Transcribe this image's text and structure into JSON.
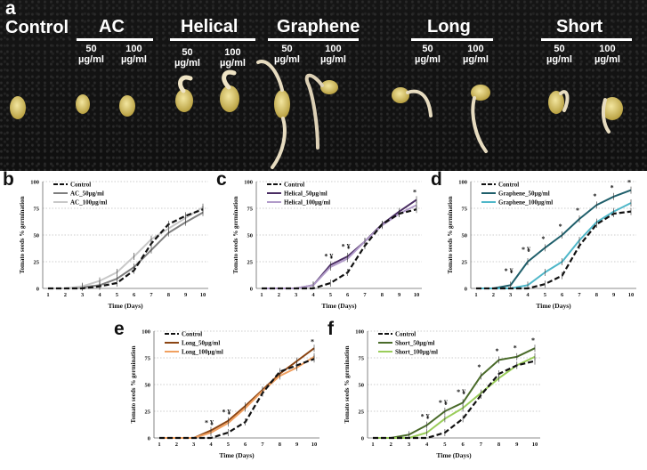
{
  "figure": {
    "panel_a": {
      "letter": "a",
      "labels": {
        "control": "Control",
        "ac": "AC",
        "helical": "Helical",
        "graphene": "Graphene",
        "long": "Long",
        "short": "Short"
      },
      "doses": {
        "ac_50": "50\nµg/ml",
        "ac_100": "100\nµg/ml",
        "helical_50": "50\nµg/ml",
        "helical_100": "100\nµg/ml",
        "graphene_50": "50\nµg/ml",
        "graphene_100": "100\nµg/ml",
        "long_50": "50\nµg/ml",
        "long_100": "100\nµg/ml",
        "short_50": "50\nµg/ml",
        "short_100": "100\nµg/ml"
      }
    }
  },
  "chart_data": [
    {
      "letter": "b",
      "type": "line",
      "xlabel": "Time (Days)",
      "ylabel": "Tomato seeds % germination",
      "x": [
        1,
        2,
        3,
        4,
        5,
        6,
        7,
        8,
        9,
        10
      ],
      "ylim": [
        0,
        100
      ],
      "yticks": [
        0,
        25,
        50,
        75,
        100
      ],
      "grid": "dotted horizontal",
      "legend": "top-left",
      "series": [
        {
          "name": "Control",
          "color": "#111111",
          "dash": true,
          "values": [
            0,
            0,
            0,
            2,
            5,
            17,
            42,
            60,
            68,
            74
          ]
        },
        {
          "name": "AC_50µg/ml",
          "color": "#7f7f7f",
          "dash": false,
          "values": [
            0,
            0,
            1,
            3,
            9,
            20,
            36,
            52,
            62,
            71
          ]
        },
        {
          "name": "AC_100µg/ml",
          "color": "#c8c8c8",
          "dash": false,
          "values": [
            0,
            0,
            2,
            7,
            15,
            30,
            46,
            56,
            66,
            76
          ]
        }
      ],
      "annotations": []
    },
    {
      "letter": "c",
      "type": "line",
      "xlabel": "Time (Days)",
      "ylabel": "Tomato seeds % germination",
      "x": [
        1,
        2,
        3,
        4,
        5,
        6,
        7,
        8,
        9,
        10
      ],
      "ylim": [
        0,
        100
      ],
      "yticks": [
        0,
        25,
        50,
        75,
        100
      ],
      "grid": "dotted horizontal",
      "legend": "top-left",
      "series": [
        {
          "name": "Control",
          "color": "#111111",
          "dash": true,
          "values": [
            0,
            0,
            0,
            0,
            5,
            15,
            40,
            60,
            70,
            74
          ]
        },
        {
          "name": "Helical_50µg/ml",
          "color": "#4a2d63",
          "dash": false,
          "values": [
            0,
            0,
            0,
            3,
            22,
            30,
            44,
            60,
            72,
            83
          ]
        },
        {
          "name": "Helical_100µg/ml",
          "color": "#b19bc9",
          "dash": false,
          "values": [
            0,
            0,
            0,
            3,
            20,
            28,
            44,
            59,
            70,
            78
          ]
        }
      ],
      "annotations": [
        {
          "x": 5,
          "y": 28,
          "text": "* ¥"
        },
        {
          "x": 6,
          "y": 37,
          "text": "* ¥"
        },
        {
          "x": 10,
          "y": 88,
          "text": "*"
        }
      ]
    },
    {
      "letter": "d",
      "type": "line",
      "xlabel": "Time (Days)",
      "ylabel": "Tomato seeds % germination",
      "x": [
        1,
        2,
        3,
        4,
        5,
        6,
        7,
        8,
        9,
        10
      ],
      "ylim": [
        0,
        100
      ],
      "yticks": [
        0,
        25,
        50,
        75,
        100
      ],
      "grid": "dotted horizontal",
      "legend": "top-left",
      "series": [
        {
          "name": "Control",
          "color": "#111111",
          "dash": true,
          "values": [
            0,
            0,
            0,
            0,
            4,
            12,
            40,
            60,
            70,
            72
          ]
        },
        {
          "name": "Graphene_50µg/ml",
          "color": "#1f5f6b",
          "dash": false,
          "values": [
            0,
            0,
            3,
            25,
            38,
            50,
            65,
            78,
            86,
            92
          ]
        },
        {
          "name": "Graphene_100µg/ml",
          "color": "#4fb7c9",
          "dash": false,
          "values": [
            0,
            0,
            0,
            3,
            15,
            25,
            45,
            62,
            72,
            80
          ]
        }
      ],
      "annotations": [
        {
          "x": 3,
          "y": 14,
          "text": "* ¥"
        },
        {
          "x": 4,
          "y": 34,
          "text": "* ¥"
        },
        {
          "x": 5,
          "y": 44,
          "text": "*"
        },
        {
          "x": 6,
          "y": 56,
          "text": "*"
        },
        {
          "x": 7,
          "y": 71,
          "text": "*"
        },
        {
          "x": 8,
          "y": 84,
          "text": "*"
        },
        {
          "x": 9,
          "y": 92,
          "text": "*"
        },
        {
          "x": 10,
          "y": 97,
          "text": "*"
        }
      ]
    },
    {
      "letter": "e",
      "type": "line",
      "xlabel": "Time (Days)",
      "ylabel": "Tomato seeds % germination",
      "x": [
        1,
        2,
        3,
        4,
        5,
        6,
        7,
        8,
        9,
        10
      ],
      "ylim": [
        0,
        100
      ],
      "yticks": [
        0,
        25,
        50,
        75,
        100
      ],
      "grid": "dotted horizontal",
      "legend": "top-left",
      "series": [
        {
          "name": "Control",
          "color": "#111111",
          "dash": true,
          "values": [
            0,
            0,
            0,
            0,
            5,
            15,
            42,
            62,
            68,
            74
          ]
        },
        {
          "name": "Long_50µg/ml",
          "color": "#8b4513",
          "dash": false,
          "values": [
            0,
            0,
            0,
            7,
            16,
            30,
            45,
            60,
            72,
            84
          ]
        },
        {
          "name": "Long_100µg/ml",
          "color": "#f0a060",
          "dash": false,
          "values": [
            0,
            0,
            0,
            5,
            14,
            28,
            44,
            58,
            66,
            76
          ]
        }
      ],
      "annotations": [
        {
          "x": 4,
          "y": 12,
          "text": "* ¥"
        },
        {
          "x": 5,
          "y": 22,
          "text": "* ¥"
        },
        {
          "x": 10,
          "y": 88,
          "text": "*"
        }
      ]
    },
    {
      "letter": "f",
      "type": "line",
      "xlabel": "Time (Days)",
      "ylabel": "Tomato seeds % germination",
      "x": [
        1,
        2,
        3,
        4,
        5,
        6,
        7,
        8,
        9,
        10
      ],
      "ylim": [
        0,
        100
      ],
      "yticks": [
        0,
        25,
        50,
        75,
        100
      ],
      "grid": "dotted horizontal",
      "legend": "top-left",
      "series": [
        {
          "name": "Control",
          "color": "#111111",
          "dash": true,
          "values": [
            0,
            0,
            0,
            0,
            5,
            18,
            40,
            60,
            68,
            72
          ]
        },
        {
          "name": "Short_50µg/ml",
          "color": "#4a6b2a",
          "dash": false,
          "values": [
            0,
            0,
            3,
            12,
            25,
            33,
            58,
            73,
            76,
            84
          ]
        },
        {
          "name": "Short_100µg/ml",
          "color": "#9acd5a",
          "dash": false,
          "values": [
            0,
            0,
            0,
            5,
            18,
            28,
            42,
            56,
            68,
            76
          ]
        }
      ],
      "annotations": [
        {
          "x": 4,
          "y": 18,
          "text": "* ¥"
        },
        {
          "x": 5,
          "y": 31,
          "text": "* ¥"
        },
        {
          "x": 6,
          "y": 41,
          "text": "* ¥"
        },
        {
          "x": 7,
          "y": 64,
          "text": "*"
        },
        {
          "x": 8,
          "y": 79,
          "text": "*"
        },
        {
          "x": 9,
          "y": 82,
          "text": "*"
        },
        {
          "x": 10,
          "y": 89,
          "text": "*"
        }
      ]
    }
  ]
}
